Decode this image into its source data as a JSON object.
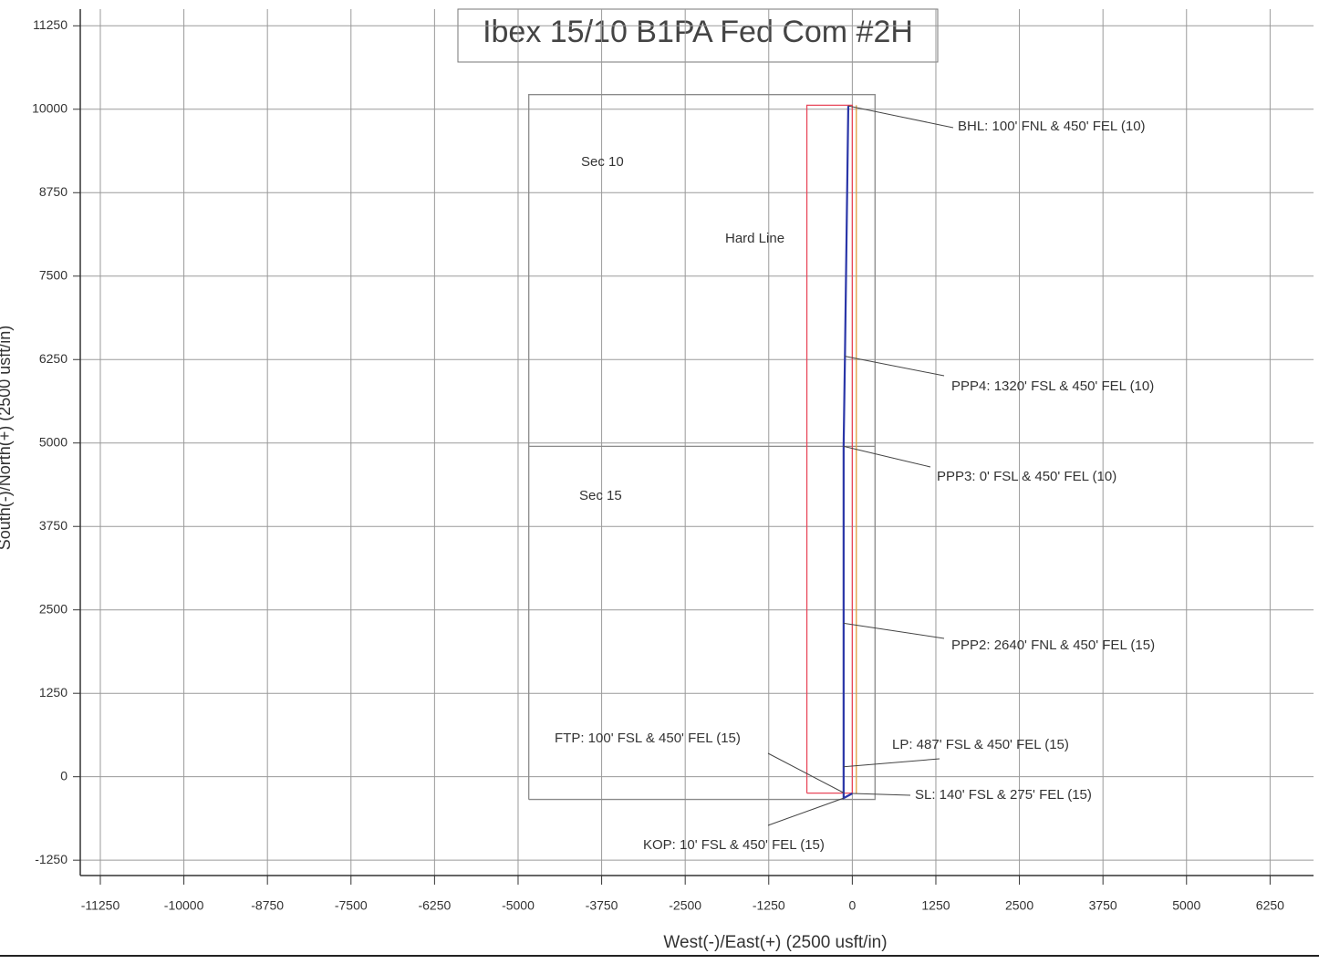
{
  "chart_data": {
    "type": "line",
    "title": "Ibex 15/10 B1PA Fed Com #2H",
    "x_label": "West(-)/East(+) (2500 usft/in)",
    "y_label": "South(-)/North(+) (2500 usft/in)",
    "xlim": [
      -11550,
      6900
    ],
    "ylim": [
      -1480,
      11500
    ],
    "xticks": [
      -11250,
      -10000,
      -8750,
      -7500,
      -6250,
      -5000,
      -3750,
      -2500,
      -1250,
      0,
      1250,
      2500,
      3750,
      5000,
      6250
    ],
    "yticks": [
      -1250,
      0,
      1250,
      2500,
      3750,
      5000,
      6250,
      7500,
      8750,
      10000,
      11250
    ],
    "grid": true,
    "series": [
      {
        "color": "#8a8a8a",
        "x": [
          -4840,
          340,
          340,
          -4840,
          -4840
        ],
        "values": [
          -340,
          -340,
          10220,
          10220,
          -340
        ]
      },
      {
        "color": "#8a8a8a",
        "x": [
          -4840,
          340
        ],
        "values": [
          4950,
          4950
        ]
      },
      {
        "color": "#e8475a",
        "x": [
          -680,
          0,
          0,
          -680,
          -680
        ],
        "values": [
          -245,
          -245,
          10060,
          10060,
          -245
        ]
      },
      {
        "color": "#e0a040",
        "x": [
          60,
          60
        ],
        "values": [
          -250,
          10060
        ]
      },
      {
        "color": "#2a36a8",
        "x": [
          0,
          -130,
          -130,
          -130,
          -130,
          -130,
          -110,
          -60
        ],
        "values": [
          -250,
          -320,
          -240,
          150,
          2300,
          4950,
          6300,
          10050
        ]
      }
    ],
    "annotations": [
      {
        "text": "BHL: 100' FNL & 450' FEL (10)",
        "x": -60,
        "y": 10050
      },
      {
        "text": "PPP4: 1320' FSL & 450' FEL (10)",
        "x": -110,
        "y": 6300
      },
      {
        "text": "PPP3: 0' FSL & 450' FEL (10)",
        "x": -130,
        "y": 4950
      },
      {
        "text": "PPP2: 2640' FNL & 450' FEL (15)",
        "x": -130,
        "y": 2300
      },
      {
        "text": "LP: 487' FSL & 450' FEL (15)",
        "x": -130,
        "y": 150
      },
      {
        "text": "SL: 140' FSL & 275' FEL (15)",
        "x": 0,
        "y": -250
      },
      {
        "text": "FTP: 100' FSL & 450' FEL (15)",
        "x": -130,
        "y": -240
      },
      {
        "text": "KOP: 10' FSL & 450' FEL (15)",
        "x": -130,
        "y": -320
      },
      {
        "text": "Sec 10"
      },
      {
        "text": "Sec 15"
      },
      {
        "text": "Hard Line"
      }
    ]
  }
}
